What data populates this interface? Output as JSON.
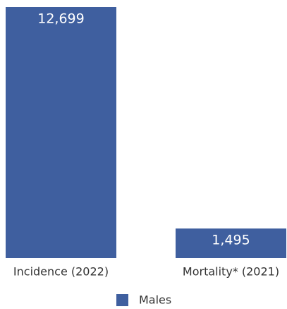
{
  "chart_data": {
    "type": "bar",
    "categories": [
      "Incidence (2022)",
      "Mortality* (2021)"
    ],
    "series": [
      {
        "name": "Males",
        "color": "#3f5f9f",
        "values": [
          12699,
          1495
        ],
        "value_labels": [
          "12,699",
          "1,495"
        ]
      }
    ],
    "legend": "bottom"
  }
}
